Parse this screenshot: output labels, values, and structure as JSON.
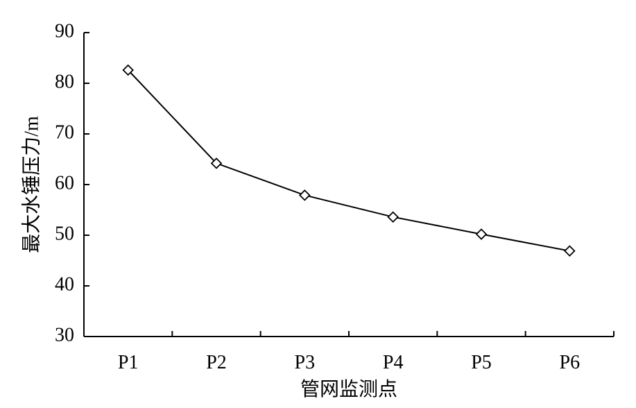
{
  "chart_data": {
    "type": "line",
    "title": "",
    "xlabel": "管网监测点",
    "ylabel": "最大水锤压力/m",
    "categories": [
      "P1",
      "P2",
      "P3",
      "P4",
      "P5",
      "P6"
    ],
    "series": [
      {
        "values": [
          82.6,
          64.2,
          57.9,
          53.6,
          50.2,
          46.9
        ],
        "marker": "diamond",
        "color": "#000000"
      }
    ],
    "ylim": [
      30,
      90
    ],
    "yticks": [
      30,
      40,
      50,
      60,
      70,
      80,
      90
    ],
    "grid": false,
    "legend": "none"
  }
}
